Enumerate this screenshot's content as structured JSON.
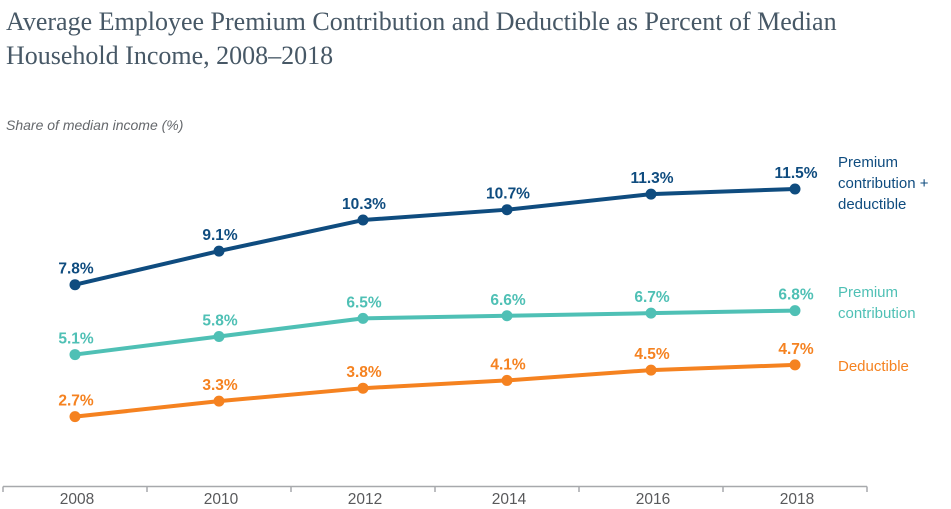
{
  "header": {
    "title": "Average Employee Premium Contribution and Deductible as Percent of Median Household Income, 2008–2018",
    "subtitle": "Share of median income (%)"
  },
  "chart_data": {
    "type": "line",
    "title": "Average Employee Premium Contribution and Deductible as Percent of Median Household Income, 2008–2018",
    "ylabel": "Share of median income (%)",
    "xlabel": "",
    "categories": [
      "2008",
      "2010",
      "2012",
      "2014",
      "2016",
      "2018"
    ],
    "series": [
      {
        "name": "Premium contribution + deductible",
        "values": [
          7.8,
          9.1,
          10.3,
          10.7,
          11.3,
          11.5
        ],
        "labels": [
          "7.8%",
          "9.1%",
          "10.3%",
          "10.7%",
          "11.3%",
          "11.5%"
        ],
        "color": "#0f4c7f"
      },
      {
        "name": "Premium contribution",
        "values": [
          5.1,
          5.8,
          6.5,
          6.6,
          6.7,
          6.8
        ],
        "labels": [
          "5.1%",
          "5.8%",
          "6.5%",
          "6.6%",
          "6.7%",
          "6.8%"
        ],
        "color": "#4fc0b5"
      },
      {
        "name": "Deductible",
        "values": [
          2.7,
          3.3,
          3.8,
          4.1,
          4.5,
          4.7
        ],
        "labels": [
          "2.7%",
          "3.3%",
          "3.8%",
          "4.1%",
          "4.5%",
          "4.7%"
        ],
        "color": "#f58220"
      }
    ],
    "ylim": [
      0,
      13
    ],
    "grid": false,
    "legend_position": "right",
    "axis_color": "#a7a9ac",
    "tick_label_color": "#58595b",
    "data_labels_shown": true
  }
}
